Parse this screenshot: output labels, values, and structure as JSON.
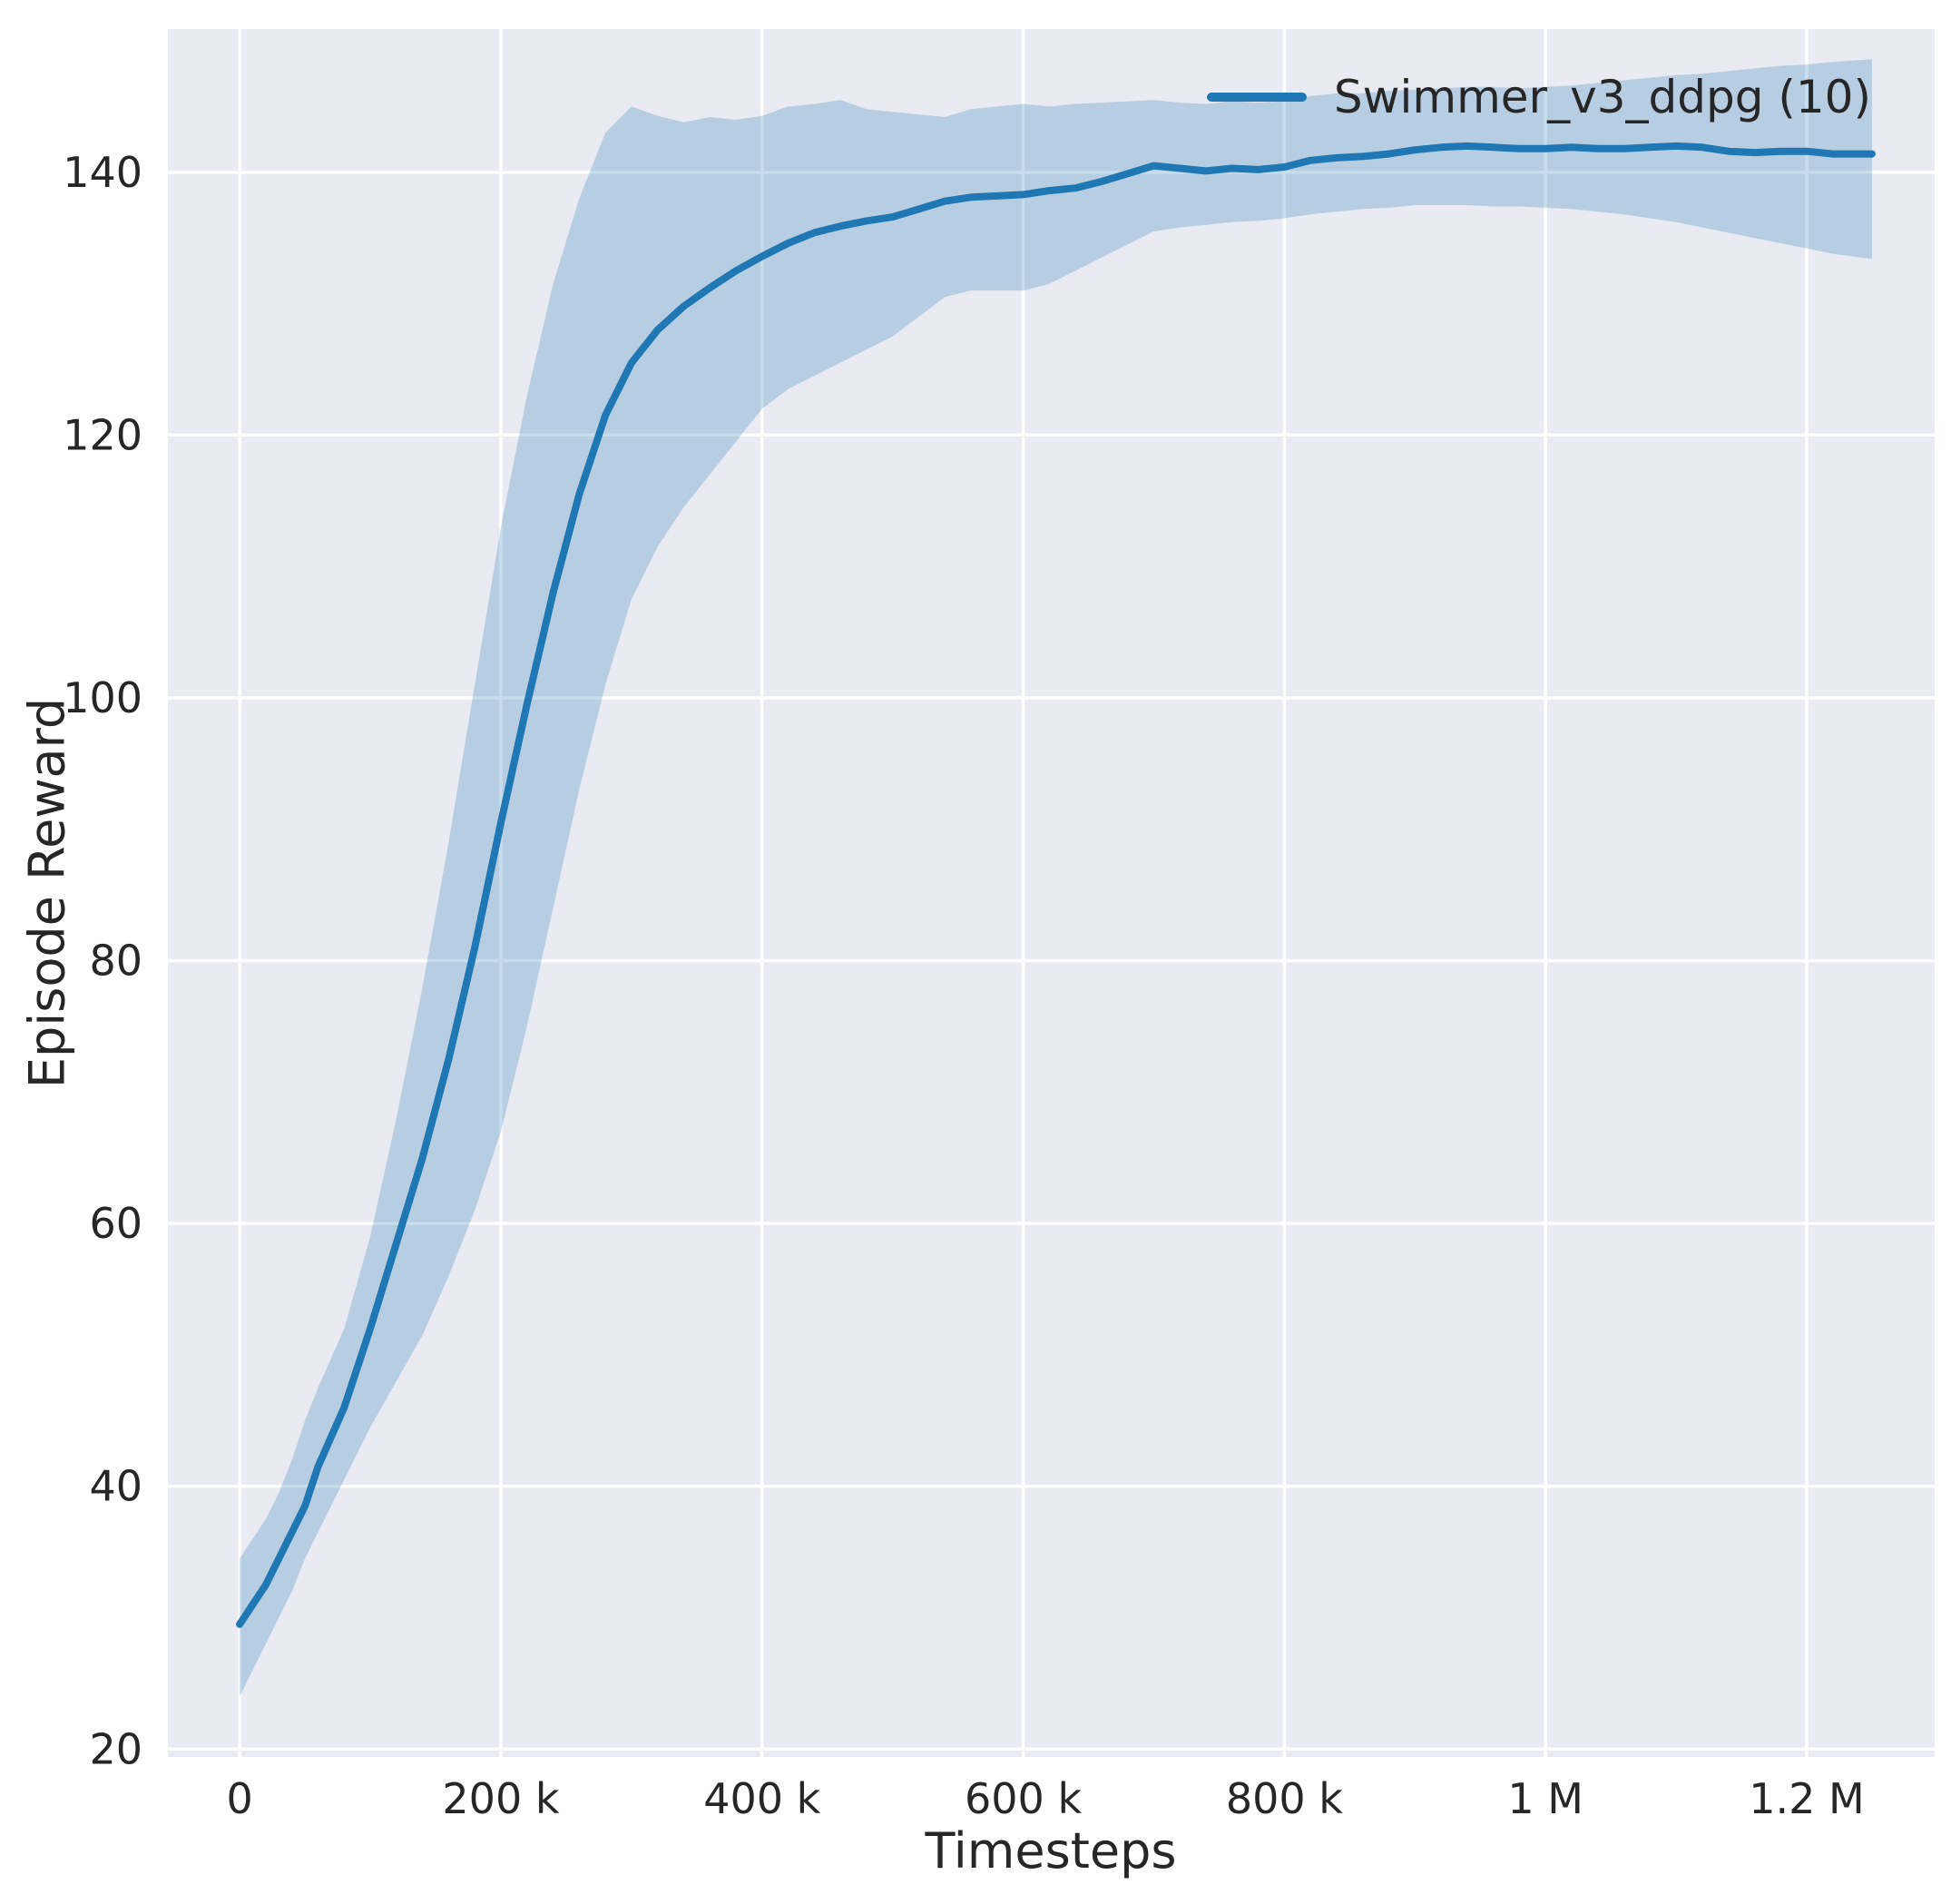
{
  "chart_data": {
    "type": "line",
    "title": "",
    "xlabel": "Timesteps",
    "ylabel": "Episode Reward",
    "xlim": [
      -55000,
      1298000
    ],
    "ylim": [
      19.4,
      150.9
    ],
    "grid": true,
    "legend_position": "upper right",
    "colors": {
      "line": "#1f77b4",
      "band_alpha": 0.25,
      "background": "#eaeaf2",
      "grid": "#ffffff",
      "text": "#262626"
    },
    "xticks": [
      {
        "value": 0,
        "label": "0"
      },
      {
        "value": 200000,
        "label": "200 k"
      },
      {
        "value": 400000,
        "label": "400 k"
      },
      {
        "value": 600000,
        "label": "600 k"
      },
      {
        "value": 800000,
        "label": "800 k"
      },
      {
        "value": 1000000,
        "label": "1 M"
      },
      {
        "value": 1200000,
        "label": "1.2 M"
      }
    ],
    "yticks": [
      {
        "value": 20,
        "label": "20"
      },
      {
        "value": 40,
        "label": "40"
      },
      {
        "value": 60,
        "label": "60"
      },
      {
        "value": 80,
        "label": "80"
      },
      {
        "value": 100,
        "label": "100"
      },
      {
        "value": 120,
        "label": "120"
      },
      {
        "value": 140,
        "label": "140"
      }
    ],
    "series": [
      {
        "name": "Swimmer_v3_ddpg (10)",
        "x": [
          0,
          10000,
          20000,
          30000,
          40000,
          50000,
          60000,
          80000,
          100000,
          120000,
          140000,
          160000,
          180000,
          200000,
          220000,
          240000,
          260000,
          280000,
          300000,
          320000,
          340000,
          360000,
          380000,
          400000,
          420000,
          440000,
          460000,
          480000,
          500000,
          520000,
          540000,
          560000,
          580000,
          600000,
          620000,
          640000,
          660000,
          680000,
          700000,
          720000,
          740000,
          760000,
          780000,
          800000,
          820000,
          840000,
          860000,
          880000,
          900000,
          920000,
          940000,
          960000,
          980000,
          1000000,
          1020000,
          1040000,
          1060000,
          1080000,
          1100000,
          1120000,
          1140000,
          1160000,
          1180000,
          1200000,
          1220000,
          1250000
        ],
        "mean": [
          29.5,
          31,
          32.5,
          34.5,
          36.5,
          38.5,
          41.5,
          46,
          52,
          58.5,
          65,
          72.5,
          81,
          90.5,
          99.5,
          108,
          115.5,
          121.5,
          125.5,
          128,
          129.8,
          131.2,
          132.5,
          133.6,
          134.6,
          135.4,
          135.9,
          136.3,
          136.6,
          137.2,
          137.8,
          138.1,
          138.2,
          138.3,
          138.6,
          138.8,
          139.3,
          139.9,
          140.5,
          140.3,
          140.1,
          140.3,
          140.2,
          140.4,
          140.9,
          141.1,
          141.2,
          141.4,
          141.7,
          141.9,
          142.0,
          141.9,
          141.8,
          141.8,
          141.9,
          141.8,
          141.8,
          141.9,
          142.0,
          141.9,
          141.6,
          141.5,
          141.6,
          141.6,
          141.4,
          141.4
        ],
        "low": [
          24,
          26,
          28,
          30,
          32,
          34.5,
          36.5,
          40.5,
          44.5,
          48,
          51.5,
          56,
          61,
          67,
          75,
          84,
          93,
          101,
          107.5,
          111.5,
          114.5,
          117,
          119.5,
          122,
          123.5,
          124.5,
          125.5,
          126.5,
          127.5,
          129,
          130.5,
          131,
          131,
          131,
          131.5,
          132.5,
          133.5,
          134.5,
          135.5,
          135.8,
          136,
          136.2,
          136.3,
          136.5,
          136.8,
          137,
          137.2,
          137.3,
          137.5,
          137.5,
          137.5,
          137.4,
          137.4,
          137.3,
          137.2,
          137,
          136.8,
          136.5,
          136.2,
          135.8,
          135.4,
          135,
          134.6,
          134.2,
          133.8,
          133.4
        ],
        "high": [
          34.5,
          36,
          37.5,
          39.5,
          42,
          45,
          47.5,
          52,
          59,
          68,
          78,
          89,
          101,
          113,
          123,
          131.5,
          138,
          143,
          145,
          144.3,
          143.8,
          144.2,
          144,
          144.3,
          145,
          145.2,
          145.5,
          144.8,
          144.6,
          144.4,
          144.2,
          144.8,
          145,
          145.2,
          145,
          145.2,
          145.3,
          145.4,
          145.5,
          145.3,
          145.2,
          145.4,
          145.3,
          145.4,
          145.8,
          146,
          146,
          146.2,
          146.3,
          146.4,
          146.5,
          146.5,
          146.4,
          146.5,
          146.6,
          146.8,
          147,
          147.2,
          147.4,
          147.5,
          147.7,
          147.9,
          148.1,
          148.2,
          148.4,
          148.6
        ]
      }
    ]
  }
}
